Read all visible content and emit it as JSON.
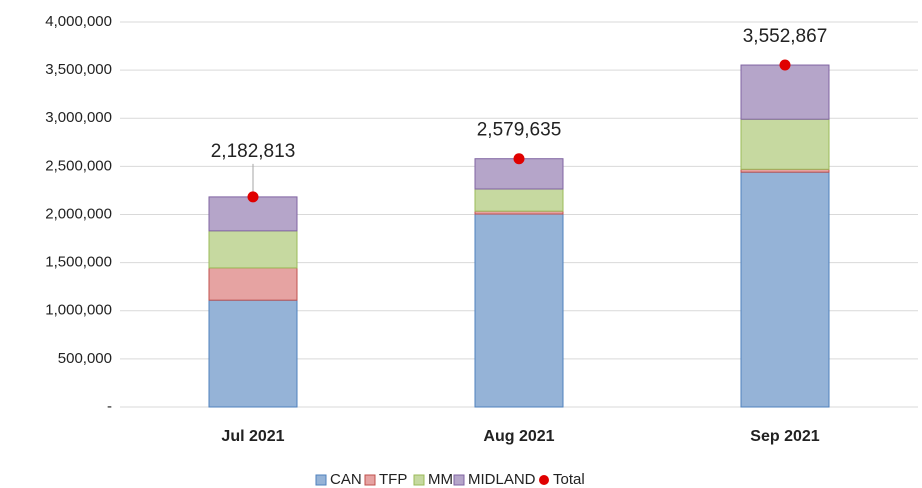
{
  "chart_data": {
    "type": "bar",
    "stacked": true,
    "categories": [
      "Jul 2021",
      "Aug 2021",
      "Sep 2021"
    ],
    "series": [
      {
        "name": "CAN",
        "color": "#95b3d7",
        "stroke": "#4f81bd",
        "values": [
          1110000,
          2005000,
          2440000
        ]
      },
      {
        "name": "TFP",
        "color": "#e6a3a2",
        "stroke": "#c0504d",
        "values": [
          335000,
          30000,
          30000
        ]
      },
      {
        "name": "MM",
        "color": "#c6d9a0",
        "stroke": "#9bbb59",
        "values": [
          385000,
          230000,
          520000
        ]
      },
      {
        "name": "MIDLAND",
        "color": "#b5a5c9",
        "stroke": "#8064a2",
        "values": [
          352813,
          314635,
          562867
        ]
      },
      {
        "name": "Total",
        "type": "scatter",
        "color": "#e00000",
        "values": [
          2182813,
          2579635,
          3552867
        ],
        "value_labels": [
          "2,182,813",
          "2,579,635",
          "3,552,867"
        ]
      }
    ],
    "ylim": [
      0,
      4000000
    ],
    "yticks": [
      {
        "value": 0,
        "label": "-"
      },
      {
        "value": 500000,
        "label": "500,000"
      },
      {
        "value": 1000000,
        "label": "1,000,000"
      },
      {
        "value": 1500000,
        "label": "1,500,000"
      },
      {
        "value": 2000000,
        "label": "2,000,000"
      },
      {
        "value": 2500000,
        "label": "2,500,000"
      },
      {
        "value": 3000000,
        "label": "3,000,000"
      },
      {
        "value": 3500000,
        "label": "3,500,000"
      },
      {
        "value": 4000000,
        "label": "4,000,000"
      }
    ],
    "grid": true,
    "legend": "bottom"
  }
}
